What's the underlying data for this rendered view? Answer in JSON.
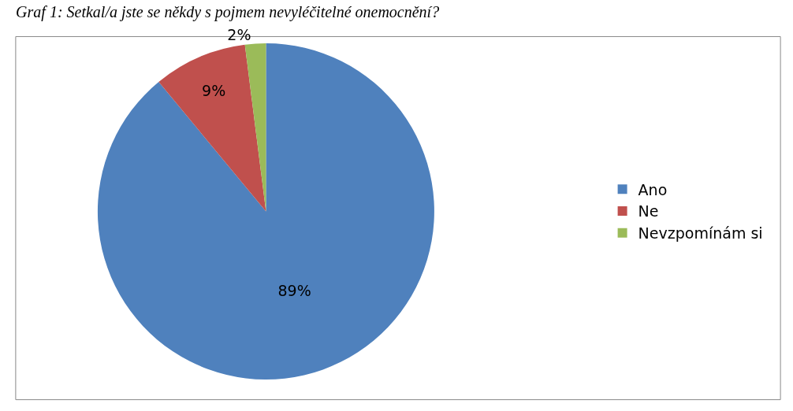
{
  "chart_data": {
    "type": "pie",
    "title": "Graf 1: Setkal/a jste se někdy s pojmem nevyléčitelné onemocnění?",
    "categories": [
      "Ano",
      "Ne",
      "Nevzpomínám si"
    ],
    "values": [
      89,
      9,
      2
    ],
    "colors": [
      "#4f81bd",
      "#c0504d",
      "#9bbb59"
    ],
    "value_labels": [
      "89%",
      "9%",
      "2%"
    ],
    "legend": "right"
  }
}
